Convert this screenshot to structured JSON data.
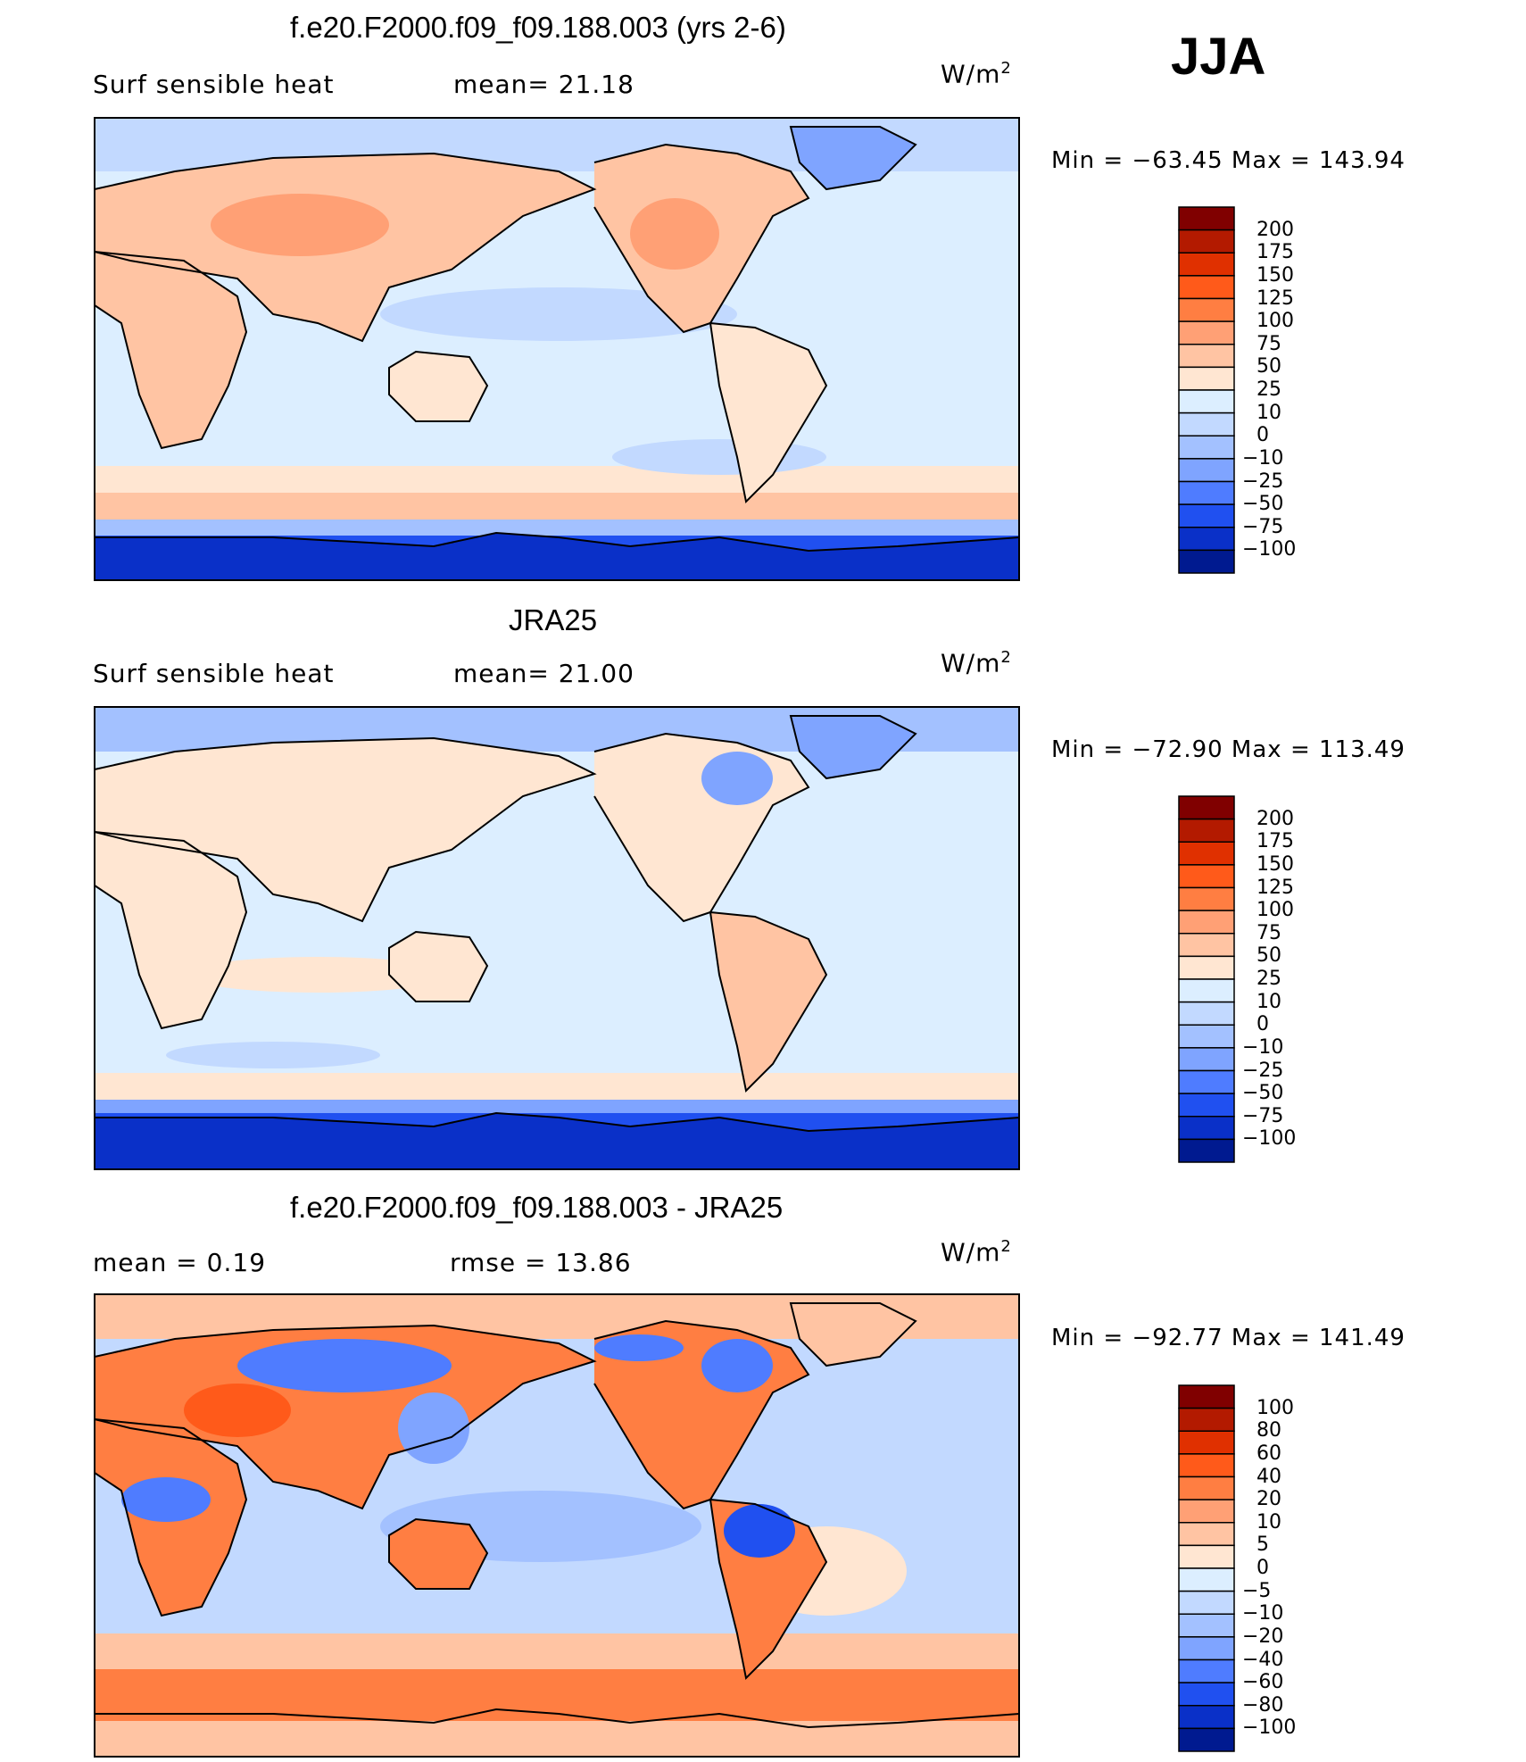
{
  "season": "JJA",
  "units_prefix": "W/m",
  "units_exp": "2",
  "panels": [
    {
      "title": "f.e20.F2000.f09_f09.188.003 (yrs 2-6)",
      "left_label": "Surf  sensible  heat",
      "center_label": "mean=   21.18",
      "min_max": "Min  =  −63.45  Max  =  143.94",
      "colorbar_levels": [
        "200",
        "175",
        "150",
        "125",
        "100",
        "75",
        "50",
        "25",
        "10",
        "0",
        "−10",
        "−25",
        "−50",
        "−75",
        "−100"
      ],
      "colorbar_colors": [
        "#800000",
        "#b31a00",
        "#e03000",
        "#ff5a1a",
        "#ff7e42",
        "#ffa075",
        "#ffc4a3",
        "#ffe6d2",
        "#dceeff",
        "#c2d9ff",
        "#a3c1ff",
        "#7fa4ff",
        "#4f7cff",
        "#2050f0",
        "#0a30c8",
        "#001a90"
      ]
    },
    {
      "title": "JRA25",
      "left_label": "Surf  sensible  heat",
      "center_label": "mean=   21.00",
      "min_max": "Min  =  −72.90  Max  =  113.49",
      "colorbar_levels": [
        "200",
        "175",
        "150",
        "125",
        "100",
        "75",
        "50",
        "25",
        "10",
        "0",
        "−10",
        "−25",
        "−50",
        "−75",
        "−100"
      ],
      "colorbar_colors": [
        "#800000",
        "#b31a00",
        "#e03000",
        "#ff5a1a",
        "#ff7e42",
        "#ffa075",
        "#ffc4a3",
        "#ffe6d2",
        "#dceeff",
        "#c2d9ff",
        "#a3c1ff",
        "#7fa4ff",
        "#4f7cff",
        "#2050f0",
        "#0a30c8",
        "#001a90"
      ]
    },
    {
      "title": "f.e20.F2000.f09_f09.188.003 - JRA25",
      "left_label": "mean  =     0.19",
      "center_label": "rmse  =    13.86",
      "min_max": "Min  =  −92.77  Max  =  141.49",
      "colorbar_levels": [
        "100",
        "80",
        "60",
        "40",
        "20",
        "10",
        "5",
        "0",
        "−5",
        "−10",
        "−20",
        "−40",
        "−60",
        "−80",
        "−100"
      ],
      "colorbar_colors": [
        "#800000",
        "#b31a00",
        "#e03000",
        "#ff5a1a",
        "#ff7e42",
        "#ffa075",
        "#ffc4a3",
        "#ffe6d2",
        "#dceeff",
        "#c2d9ff",
        "#a3c1ff",
        "#7fa4ff",
        "#4f7cff",
        "#2050f0",
        "#0a30c8",
        "#001a90"
      ]
    }
  ]
}
